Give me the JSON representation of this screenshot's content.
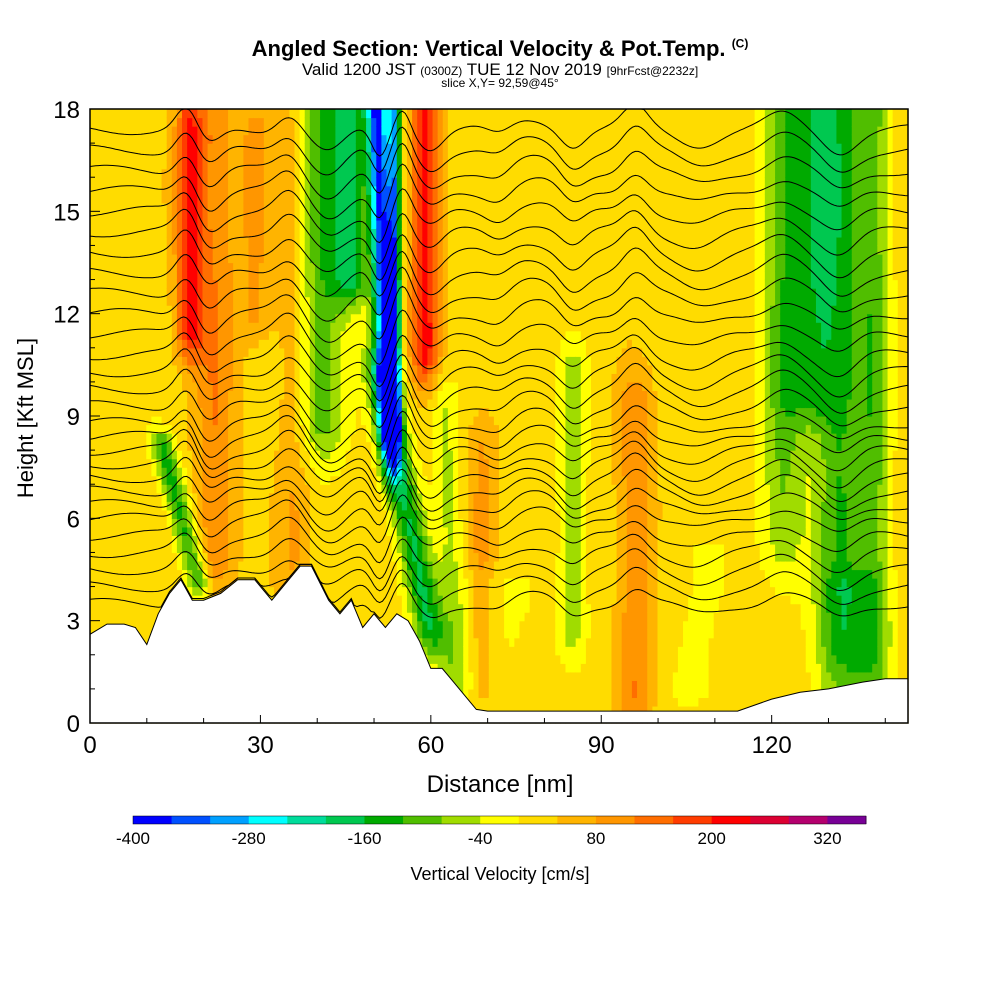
{
  "chart_data": {
    "type": "heatmap",
    "title": "Angled Section: Vertical Velocity & Pot.Temp.",
    "title_mark": "(C)",
    "subtitle_parts": {
      "valid_prefix": "Valid 1200 JST",
      "utc": "(0300Z)",
      "date": "TUE 12 Nov 2019",
      "fcst": "[9hrFcst@2232z]"
    },
    "slice_info": "slice X,Y= 92,59@45°",
    "xlabel": "Distance [nm]",
    "ylabel": "Height [Kft MSL]",
    "xlim": [
      0,
      144
    ],
    "ylim": [
      0,
      18
    ],
    "x_ticks": [
      "0",
      "30",
      "60",
      "90",
      "120"
    ],
    "y_ticks": [
      "0",
      "3",
      "6",
      "9",
      "12",
      "15",
      "18"
    ],
    "colorbar": {
      "label": "Vertical Velocity [cm/s]",
      "tick_labels": [
        "-400",
        "-280",
        "-160",
        "-40",
        "80",
        "200",
        "320"
      ],
      "levels": [
        -400,
        -360,
        -320,
        -280,
        -240,
        -200,
        -160,
        -120,
        -80,
        -40,
        0,
        40,
        80,
        120,
        160,
        200,
        240,
        280,
        320,
        360
      ],
      "colors": [
        "#0000ff",
        "#0050ff",
        "#00a0ff",
        "#00ffff",
        "#00dc9b",
        "#00c850",
        "#00aa00",
        "#50be00",
        "#a0dc00",
        "#ffff00",
        "#ffdc00",
        "#ffb400",
        "#ff9600",
        "#ff6e00",
        "#ff3c00",
        "#ff0000",
        "#dc0032",
        "#b4006e",
        "#780096"
      ]
    },
    "terrain_kft": {
      "x": [
        0,
        3,
        6,
        8,
        10,
        12,
        14,
        16,
        18,
        20,
        23,
        26,
        29,
        32,
        35,
        37,
        39,
        42,
        44,
        46,
        48,
        50,
        52,
        54,
        56,
        58,
        60,
        62,
        64,
        66,
        68,
        70,
        80,
        90,
        100,
        110,
        114,
        120,
        125,
        130,
        136,
        140,
        144
      ],
      "h": [
        2.6,
        2.9,
        2.9,
        2.8,
        2.3,
        3.2,
        3.8,
        4.2,
        3.6,
        3.6,
        3.8,
        4.2,
        4.2,
        3.6,
        4.2,
        4.6,
        4.6,
        3.6,
        3.2,
        3.6,
        2.8,
        3.2,
        2.8,
        3.2,
        3.0,
        2.4,
        1.6,
        1.6,
        1.2,
        0.8,
        0.4,
        0.35,
        0.35,
        0.35,
        0.35,
        0.35,
        0.35,
        0.7,
        0.9,
        1.0,
        1.2,
        1.3,
        1.3
      ]
    },
    "vertical_velocity_features": [
      {
        "x_center": 17.5,
        "width_nm": 2.4,
        "bottom_kft": 11.5,
        "top_kft": 17.5,
        "peak_cm_s": 170,
        "tilt_nm": 0
      },
      {
        "x_center": 22,
        "width_nm": 3.5,
        "bottom_kft": 5,
        "top_kft": 17,
        "peak_cm_s": 90,
        "tilt_nm": 0
      },
      {
        "x_center": 16,
        "width_nm": 2.2,
        "bottom_kft": 4.2,
        "top_kft": 8,
        "peak_cm_s": -160,
        "tilt_nm": -3
      },
      {
        "x_center": 29,
        "width_nm": 3,
        "bottom_kft": 12,
        "top_kft": 17.5,
        "peak_cm_s": 60,
        "tilt_nm": 0
      },
      {
        "x_center": 36,
        "width_nm": 3,
        "bottom_kft": 5,
        "top_kft": 17,
        "peak_cm_s": 60,
        "tilt_nm": 0
      },
      {
        "x_center": 40.5,
        "width_nm": 4.5,
        "bottom_kft": 9,
        "top_kft": 18,
        "peak_cm_s": -130,
        "tilt_nm": 0
      },
      {
        "x_center": 46,
        "width_nm": 3.5,
        "bottom_kft": 13,
        "top_kft": 18,
        "peak_cm_s": -170,
        "tilt_nm": 0
      },
      {
        "x_center": 51.5,
        "width_nm": 1.8,
        "bottom_kft": 9,
        "top_kft": 18,
        "peak_cm_s": -380,
        "tilt_nm": -1
      },
      {
        "x_center": 53.5,
        "width_nm": 1.2,
        "bottom_kft": 9,
        "top_kft": 18,
        "peak_cm_s": -300,
        "tilt_nm": 0
      },
      {
        "x_center": 55.5,
        "width_nm": 2.8,
        "bottom_kft": 3,
        "top_kft": 10,
        "peak_cm_s": -180,
        "tilt_nm": -4
      },
      {
        "x_center": 59,
        "width_nm": 2.5,
        "bottom_kft": 11,
        "top_kft": 18,
        "peak_cm_s": 190,
        "tilt_nm": 0
      },
      {
        "x_center": 63.5,
        "width_nm": 2.5,
        "bottom_kft": 1.5,
        "top_kft": 9,
        "peak_cm_s": -70,
        "tilt_nm": -1
      },
      {
        "x_center": 71,
        "width_nm": 10,
        "bottom_kft": 0.5,
        "top_kft": 4,
        "peak_cm_s": -30,
        "tilt_nm": 0
      },
      {
        "x_center": 69,
        "width_nm": 2.5,
        "bottom_kft": 1,
        "top_kft": 8,
        "peak_cm_s": 60,
        "tilt_nm": 0
      },
      {
        "x_center": 85,
        "width_nm": 2.5,
        "bottom_kft": 3,
        "top_kft": 10,
        "peak_cm_s": -90,
        "tilt_nm": 0
      },
      {
        "x_center": 96,
        "width_nm": 3,
        "bottom_kft": 1,
        "top_kft": 9,
        "peak_cm_s": 90,
        "tilt_nm": 0
      },
      {
        "x_center": 107,
        "width_nm": 6,
        "bottom_kft": 1,
        "top_kft": 5,
        "peak_cm_s": -30,
        "tilt_nm": 0
      },
      {
        "x_center": 122,
        "width_nm": 4,
        "bottom_kft": 6,
        "top_kft": 18,
        "peak_cm_s": -110,
        "tilt_nm": 0
      },
      {
        "x_center": 127,
        "width_nm": 4.5,
        "bottom_kft": 10,
        "top_kft": 18,
        "peak_cm_s": -120,
        "tilt_nm": 0
      },
      {
        "x_center": 132,
        "width_nm": 4.5,
        "bottom_kft": 3,
        "top_kft": 18,
        "peak_cm_s": -140,
        "tilt_nm": 0
      },
      {
        "x_center": 138,
        "width_nm": 3,
        "bottom_kft": 3,
        "top_kft": 18,
        "peak_cm_s": -110,
        "tilt_nm": 0
      },
      {
        "x_center": 135,
        "width_nm": 6,
        "bottom_kft": 1,
        "top_kft": 4,
        "peak_cm_s": -50,
        "tilt_nm": 0
      }
    ],
    "isentrope_levels": [
      {
        "level": 1,
        "base_kft": 3.5
      },
      {
        "level": 2,
        "base_kft": 4.0
      },
      {
        "level": 3,
        "base_kft": 4.5
      },
      {
        "level": 4,
        "base_kft": 5.0
      },
      {
        "level": 5,
        "base_kft": 5.5
      },
      {
        "level": 6,
        "base_kft": 6.0
      },
      {
        "level": 7,
        "base_kft": 6.4
      },
      {
        "level": 8,
        "base_kft": 6.8
      },
      {
        "level": 9,
        "base_kft": 7.2
      },
      {
        "level": 10,
        "base_kft": 7.6
      },
      {
        "level": 11,
        "base_kft": 8.0
      },
      {
        "level": 12,
        "base_kft": 8.4
      },
      {
        "level": 13,
        "base_kft": 8.8
      },
      {
        "level": 14,
        "base_kft": 9.3
      },
      {
        "level": 15,
        "base_kft": 9.8
      },
      {
        "level": 16,
        "base_kft": 10.3
      },
      {
        "level": 17,
        "base_kft": 10.8
      },
      {
        "level": 18,
        "base_kft": 11.4
      },
      {
        "level": 19,
        "base_kft": 12.0
      },
      {
        "level": 20,
        "base_kft": 12.6
      },
      {
        "level": 21,
        "base_kft": 13.2
      },
      {
        "level": 22,
        "base_kft": 13.8
      },
      {
        "level": 23,
        "base_kft": 14.4
      },
      {
        "level": 24,
        "base_kft": 15.0
      },
      {
        "level": 25,
        "base_kft": 15.6
      },
      {
        "level": 26,
        "base_kft": 16.2
      },
      {
        "level": 27,
        "base_kft": 16.8
      },
      {
        "level": 28,
        "base_kft": 17.4
      }
    ],
    "isentrope_perturbations": [
      {
        "x_center": 17,
        "width_nm": 2.5,
        "amp_kft": 0.6
      },
      {
        "x_center": 21,
        "width_nm": 3,
        "amp_kft": -0.5
      },
      {
        "x_center": 35,
        "width_nm": 3,
        "amp_kft": 0.5
      },
      {
        "x_center": 42,
        "width_nm": 4,
        "amp_kft": -0.7
      },
      {
        "x_center": 51,
        "width_nm": 2,
        "amp_kft": -0.8
      },
      {
        "x_center": 55,
        "width_nm": 2,
        "amp_kft": 0.7
      },
      {
        "x_center": 60,
        "width_nm": 3,
        "amp_kft": -0.5
      },
      {
        "x_center": 72,
        "width_nm": 3,
        "amp_kft": -0.3
      },
      {
        "x_center": 78,
        "width_nm": 6,
        "amp_kft": 0.3
      },
      {
        "x_center": 85,
        "width_nm": 3,
        "amp_kft": -0.5
      },
      {
        "x_center": 96,
        "width_nm": 3,
        "amp_kft": 0.6
      },
      {
        "x_center": 107,
        "width_nm": 5,
        "amp_kft": -0.4
      },
      {
        "x_center": 122,
        "width_nm": 4,
        "amp_kft": 0.4
      },
      {
        "x_center": 132,
        "width_nm": 4,
        "amp_kft": -0.6
      }
    ]
  }
}
